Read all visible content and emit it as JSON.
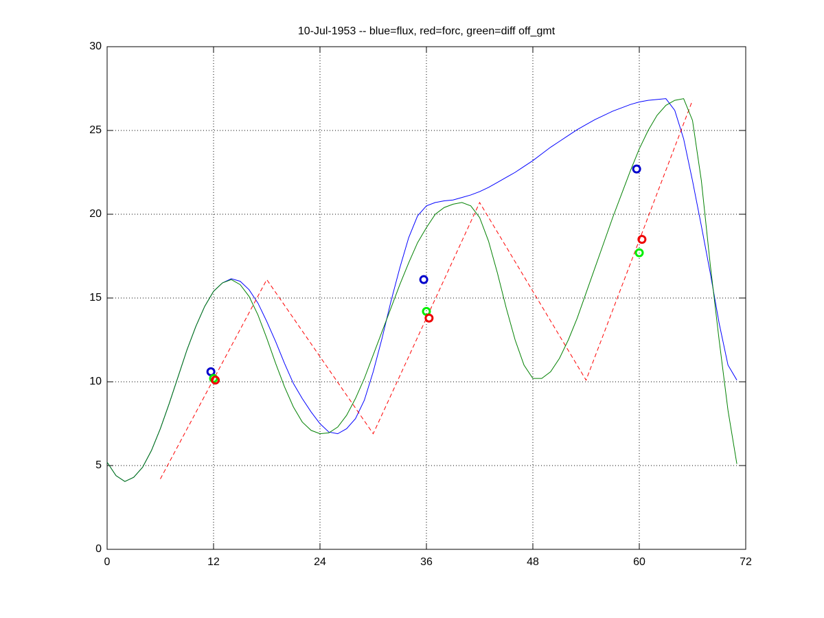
{
  "chart_data": {
    "type": "line",
    "title": "10-Jul-1953 -- blue=flux, red=forc, green=diff off_gmt",
    "xlim": [
      0,
      72
    ],
    "xticks": [
      0,
      12,
      24,
      36,
      48,
      60,
      72
    ],
    "ylim": [
      0,
      30
    ],
    "yticks": [
      0,
      5,
      10,
      15,
      20,
      25,
      30
    ],
    "grid": true,
    "series": [
      {
        "color": "#0000ff",
        "style": "solid",
        "x": [
          0,
          1,
          2,
          3,
          4,
          5,
          6,
          7,
          8,
          9,
          10,
          11,
          12,
          13,
          14,
          15,
          16,
          17,
          18,
          19,
          20,
          21,
          22,
          23,
          24,
          25,
          26,
          27,
          28,
          29,
          30,
          31,
          32,
          33,
          34,
          35,
          36,
          37,
          38,
          39,
          40,
          41,
          42,
          43,
          44,
          45,
          46,
          47,
          48,
          49,
          50,
          51,
          52,
          53,
          54,
          55,
          56,
          57,
          58,
          59,
          60,
          61,
          62,
          63,
          64,
          65,
          66,
          67,
          68,
          69,
          70,
          71
        ],
        "values": [
          5.2,
          4.4,
          4.05,
          4.3,
          4.9,
          5.9,
          7.2,
          8.7,
          10.3,
          11.9,
          13.3,
          14.5,
          15.4,
          15.9,
          16.15,
          16.0,
          15.5,
          14.7,
          13.6,
          12.4,
          11.1,
          9.9,
          9.0,
          8.2,
          7.5,
          7.0,
          6.9,
          7.2,
          7.8,
          8.9,
          10.6,
          12.6,
          14.8,
          16.8,
          18.6,
          19.9,
          20.5,
          20.7,
          20.8,
          20.85,
          21.0,
          21.15,
          21.35,
          21.6,
          21.9,
          22.2,
          22.5,
          22.85,
          23.2,
          23.6,
          24.0,
          24.35,
          24.7,
          25.05,
          25.35,
          25.65,
          25.9,
          26.15,
          26.35,
          26.55,
          26.7,
          26.8,
          26.85,
          26.9,
          26.2,
          24.5,
          22.0,
          19.3,
          16.5,
          13.5,
          11.0,
          10.1
        ]
      },
      {
        "color": "#ff0000",
        "style": "dashed",
        "x": [
          6,
          18,
          30,
          42,
          54,
          66
        ],
        "values": [
          4.2,
          16.1,
          6.9,
          20.7,
          10.1,
          26.8
        ]
      },
      {
        "color": "#008000",
        "style": "solid",
        "x": [
          0,
          1,
          2,
          3,
          4,
          5,
          6,
          7,
          8,
          9,
          10,
          11,
          12,
          13,
          14,
          15,
          16,
          17,
          18,
          19,
          20,
          21,
          22,
          23,
          24,
          25,
          26,
          27,
          28,
          29,
          30,
          31,
          32,
          33,
          34,
          35,
          36,
          37,
          38,
          39,
          40,
          41,
          42,
          43,
          44,
          45,
          46,
          47,
          48,
          49,
          50,
          51,
          52,
          53,
          54,
          55,
          56,
          57,
          58,
          59,
          60,
          61,
          62,
          63,
          64,
          65,
          66,
          67,
          68,
          69,
          70,
          71
        ],
        "values": [
          5.2,
          4.4,
          4.05,
          4.3,
          4.9,
          5.9,
          7.2,
          8.7,
          10.3,
          11.9,
          13.3,
          14.5,
          15.4,
          15.9,
          16.1,
          15.8,
          15.1,
          14.0,
          12.6,
          11.1,
          9.7,
          8.5,
          7.6,
          7.1,
          6.9,
          6.95,
          7.3,
          8.0,
          9.0,
          10.2,
          11.6,
          13.0,
          14.4,
          15.8,
          17.1,
          18.3,
          19.2,
          20.0,
          20.4,
          20.6,
          20.7,
          20.5,
          19.8,
          18.4,
          16.5,
          14.4,
          12.5,
          11.0,
          10.2,
          10.2,
          10.6,
          11.4,
          12.5,
          13.8,
          15.3,
          16.8,
          18.3,
          19.8,
          21.2,
          22.6,
          23.9,
          25.0,
          25.9,
          26.5,
          26.8,
          26.9,
          25.6,
          22.0,
          17.0,
          12.5,
          8.3,
          5.1
        ]
      },
      {
        "color": "#0000cc",
        "marker": "o",
        "x": [
          11.7,
          35.7,
          59.7
        ],
        "values": [
          10.6,
          16.1,
          22.7
        ]
      },
      {
        "color": "#00ee00",
        "marker": "o",
        "x": [
          12.0,
          36.0,
          60.0
        ],
        "values": [
          10.2,
          14.2,
          17.7
        ]
      },
      {
        "color": "#ee0000",
        "marker": "o",
        "x": [
          12.2,
          36.3,
          60.3
        ],
        "values": [
          10.1,
          13.8,
          18.5
        ]
      }
    ]
  }
}
